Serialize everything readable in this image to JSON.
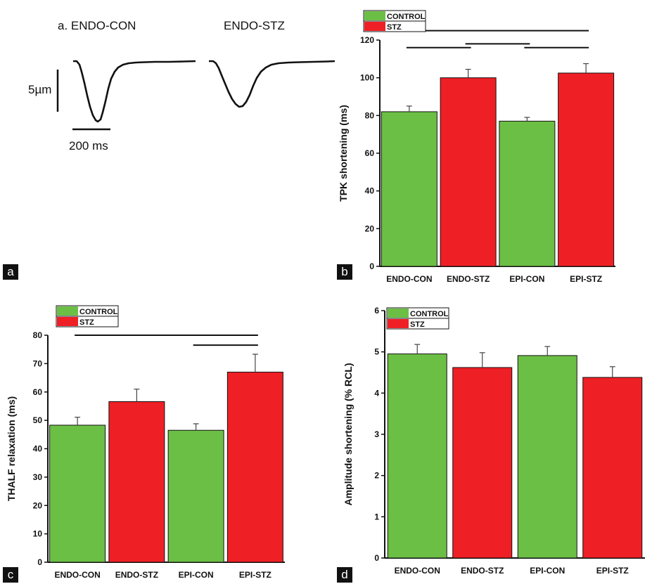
{
  "panels": {
    "a": {
      "tag": "a",
      "trace_left_title": "a. ENDO-CON",
      "trace_right_title": "ENDO-STZ",
      "scale_y_label": "5µm",
      "scale_x_label": "200 ms"
    },
    "b": {
      "tag": "b"
    },
    "c": {
      "tag": "c"
    },
    "d": {
      "tag": "d"
    }
  },
  "colors": {
    "control": "#6cbf45",
    "stz": "#ee2025",
    "axis": "#111111"
  },
  "chart_data": [
    {
      "id": "b",
      "type": "bar",
      "categories": [
        "ENDO-CON",
        "ENDO-STZ",
        "EPI-CON",
        "EPI-STZ"
      ],
      "legend": [
        "CONTROL",
        "STZ"
      ],
      "legend_position": "top-left",
      "values": [
        82,
        100,
        77,
        102.5
      ],
      "errors": [
        3,
        4.5,
        2,
        5
      ],
      "ylabel": "TPK shortening (ms)",
      "ylim": [
        0,
        120
      ],
      "yticks": [
        "0",
        "20",
        "40",
        "60",
        "80",
        "100",
        "120"
      ],
      "significance": [
        {
          "from": "ENDO-CON",
          "to": "EPI-STZ",
          "level": 125
        },
        {
          "from": "ENDO-CON",
          "to": "ENDO-STZ",
          "level": 116
        },
        {
          "from": "ENDO-STZ",
          "to": "EPI-CON",
          "level": 118
        },
        {
          "from": "EPI-CON",
          "to": "EPI-STZ",
          "level": 116
        }
      ]
    },
    {
      "id": "c",
      "type": "bar",
      "categories": [
        "ENDO-CON",
        "ENDO-STZ",
        "EPI-CON",
        "EPI-STZ"
      ],
      "legend": [
        "CONTROL",
        "STZ"
      ],
      "legend_position": "top-left",
      "values": [
        48.3,
        56.6,
        46.5,
        67
      ],
      "errors": [
        2.8,
        4.4,
        2.3,
        6.3
      ],
      "ylabel": "THALF relaxation (ms)",
      "ylim": [
        0,
        80
      ],
      "yticks": [
        "0",
        "10",
        "20",
        "30",
        "40",
        "50",
        "60",
        "70",
        "80"
      ],
      "significance": [
        {
          "from": "ENDO-CON",
          "to": "EPI-STZ",
          "level": 80
        },
        {
          "from": "EPI-CON",
          "to": "EPI-STZ",
          "level": 76.5
        }
      ]
    },
    {
      "id": "d",
      "type": "bar",
      "categories": [
        "ENDO-CON",
        "ENDO-STZ",
        "EPI-CON",
        "EPI-STZ"
      ],
      "legend": [
        "CONTROL",
        "STZ"
      ],
      "legend_position": "top-left",
      "values": [
        4.95,
        4.62,
        4.91,
        4.38
      ],
      "errors": [
        0.23,
        0.36,
        0.22,
        0.26
      ],
      "ylabel": "Amplitude shortening (% RCL)",
      "ylim": [
        0,
        6
      ],
      "yticks": [
        "0",
        "1",
        "2",
        "3",
        "4",
        "5",
        "6"
      ],
      "significance": []
    }
  ]
}
